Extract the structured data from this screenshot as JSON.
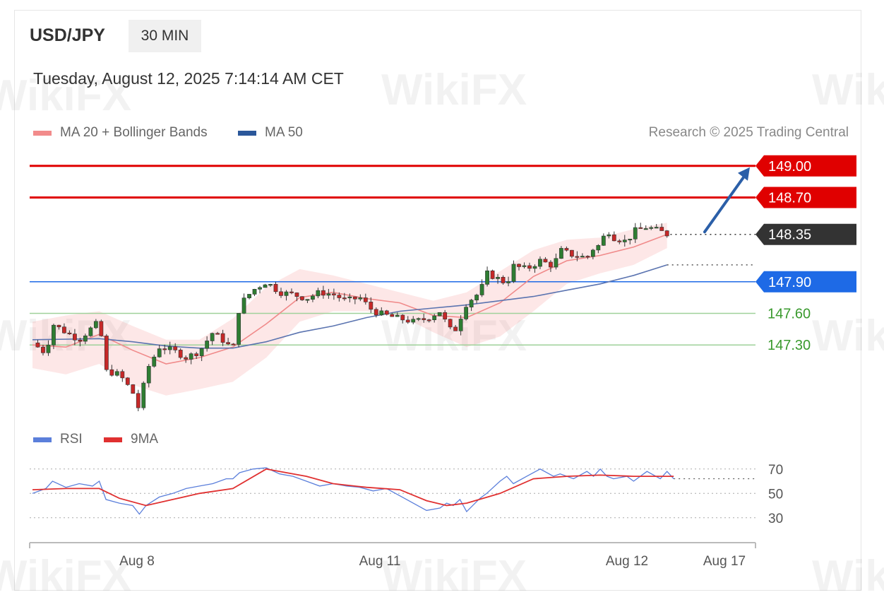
{
  "header": {
    "symbol": "USD/JPY",
    "timeframe": "30 MIN",
    "datetime": "Tuesday, August 12, 2025 7:14:14 AM CET"
  },
  "legend": {
    "main": [
      {
        "label": "MA 20 + Bollinger Bands",
        "color": "#f28b8b"
      },
      {
        "label": "MA 50",
        "color": "#2b579a"
      }
    ],
    "rsi": [
      {
        "label": "RSI",
        "color": "#5b7fdb"
      },
      {
        "label": "9MA",
        "color": "#e03030"
      }
    ]
  },
  "credit": "Research © 2025 Trading Central",
  "watermark": "WikiFX",
  "chart_data": [
    {
      "type": "candlestick",
      "title": "USD/JPY",
      "x_ticks": [
        "Aug 8",
        "Aug 11",
        "Aug 12",
        "Aug 17"
      ],
      "ylim": [
        146.55,
        149.2
      ],
      "grid": false,
      "legend_placement": "top-left",
      "levels": [
        {
          "label": "149.00",
          "value": 149.0,
          "color": "#e00000",
          "kind": "resistance",
          "tag": "red"
        },
        {
          "label": "148.70",
          "value": 148.7,
          "color": "#e00000",
          "kind": "resistance",
          "tag": "red"
        },
        {
          "label": "148.35",
          "value": 148.35,
          "color": "#333333",
          "kind": "last",
          "tag": "dark"
        },
        {
          "label": "147.90",
          "value": 147.9,
          "color": "#1e6ae6",
          "kind": "pivot",
          "tag": "blue"
        },
        {
          "label": "147.60",
          "value": 147.6,
          "color": "#3a9a2e",
          "kind": "support",
          "tag": "text"
        },
        {
          "label": "147.30",
          "value": 147.3,
          "color": "#3a9a2e",
          "kind": "support",
          "tag": "text"
        }
      ],
      "close_path": [
        [
          0,
          147.32
        ],
        [
          0.02,
          147.22
        ],
        [
          0.03,
          147.5
        ],
        [
          0.05,
          147.42
        ],
        [
          0.07,
          147.35
        ],
        [
          0.09,
          147.47
        ],
        [
          0.1,
          147.52
        ],
        [
          0.11,
          147.05
        ],
        [
          0.13,
          147.02
        ],
        [
          0.15,
          146.85
        ],
        [
          0.16,
          146.68
        ],
        [
          0.17,
          147.05
        ],
        [
          0.19,
          147.28
        ],
        [
          0.21,
          147.25
        ],
        [
          0.23,
          147.18
        ],
        [
          0.25,
          147.24
        ],
        [
          0.27,
          147.42
        ],
        [
          0.29,
          147.32
        ],
        [
          0.3,
          147.25
        ],
        [
          0.31,
          147.68
        ],
        [
          0.33,
          147.82
        ],
        [
          0.35,
          147.9
        ],
        [
          0.37,
          147.8
        ],
        [
          0.39,
          147.78
        ],
        [
          0.41,
          147.74
        ],
        [
          0.43,
          147.8
        ],
        [
          0.45,
          147.78
        ],
        [
          0.47,
          147.72
        ],
        [
          0.49,
          147.75
        ],
        [
          0.51,
          147.62
        ],
        [
          0.53,
          147.58
        ],
        [
          0.55,
          147.55
        ],
        [
          0.57,
          147.52
        ],
        [
          0.59,
          147.55
        ],
        [
          0.61,
          147.62
        ],
        [
          0.62,
          147.5
        ],
        [
          0.63,
          147.4
        ],
        [
          0.64,
          147.55
        ],
        [
          0.65,
          147.7
        ],
        [
          0.67,
          147.8
        ],
        [
          0.68,
          147.98
        ],
        [
          0.7,
          147.92
        ],
        [
          0.71,
          147.88
        ],
        [
          0.72,
          148.05
        ],
        [
          0.74,
          148.02
        ],
        [
          0.76,
          148.1
        ],
        [
          0.78,
          148.05
        ],
        [
          0.79,
          148.2
        ],
        [
          0.81,
          148.15
        ],
        [
          0.83,
          148.13
        ],
        [
          0.84,
          148.22
        ],
        [
          0.85,
          148.25
        ],
        [
          0.86,
          148.4
        ],
        [
          0.87,
          148.32
        ],
        [
          0.89,
          148.28
        ],
        [
          0.9,
          148.38
        ],
        [
          0.92,
          148.42
        ],
        [
          0.94,
          148.38
        ],
        [
          0.95,
          148.35
        ]
      ],
      "ma20": [
        [
          0,
          147.3
        ],
        [
          0.05,
          147.28
        ],
        [
          0.1,
          147.4
        ],
        [
          0.15,
          147.25
        ],
        [
          0.2,
          147.12
        ],
        [
          0.25,
          147.18
        ],
        [
          0.3,
          147.28
        ],
        [
          0.35,
          147.5
        ],
        [
          0.4,
          147.75
        ],
        [
          0.45,
          147.8
        ],
        [
          0.5,
          147.74
        ],
        [
          0.55,
          147.7
        ],
        [
          0.6,
          147.58
        ],
        [
          0.65,
          147.56
        ],
        [
          0.7,
          147.7
        ],
        [
          0.75,
          147.95
        ],
        [
          0.8,
          148.1
        ],
        [
          0.85,
          148.15
        ],
        [
          0.9,
          148.23
        ],
        [
          0.95,
          148.35
        ]
      ],
      "bb_upper": [
        [
          0,
          147.52
        ],
        [
          0.05,
          147.58
        ],
        [
          0.1,
          147.62
        ],
        [
          0.15,
          147.48
        ],
        [
          0.2,
          147.35
        ],
        [
          0.25,
          147.35
        ],
        [
          0.3,
          147.55
        ],
        [
          0.35,
          147.85
        ],
        [
          0.4,
          148.02
        ],
        [
          0.45,
          147.96
        ],
        [
          0.5,
          147.88
        ],
        [
          0.55,
          147.8
        ],
        [
          0.6,
          147.72
        ],
        [
          0.65,
          147.8
        ],
        [
          0.7,
          148.0
        ],
        [
          0.75,
          148.2
        ],
        [
          0.8,
          148.3
        ],
        [
          0.85,
          148.32
        ],
        [
          0.9,
          148.4
        ],
        [
          0.95,
          148.46
        ]
      ],
      "bb_lower": [
        [
          0,
          147.08
        ],
        [
          0.05,
          147.02
        ],
        [
          0.1,
          147.12
        ],
        [
          0.15,
          146.92
        ],
        [
          0.2,
          146.82
        ],
        [
          0.25,
          146.88
        ],
        [
          0.3,
          146.95
        ],
        [
          0.35,
          147.18
        ],
        [
          0.4,
          147.52
        ],
        [
          0.45,
          147.62
        ],
        [
          0.5,
          147.62
        ],
        [
          0.55,
          147.58
        ],
        [
          0.6,
          147.42
        ],
        [
          0.65,
          147.28
        ],
        [
          0.7,
          147.38
        ],
        [
          0.75,
          147.62
        ],
        [
          0.8,
          147.88
        ],
        [
          0.85,
          147.98
        ],
        [
          0.9,
          148.06
        ],
        [
          0.95,
          148.22
        ]
      ],
      "ma50": [
        [
          0,
          147.35
        ],
        [
          0.1,
          147.36
        ],
        [
          0.15,
          147.33
        ],
        [
          0.2,
          147.29
        ],
        [
          0.25,
          147.27
        ],
        [
          0.3,
          147.27
        ],
        [
          0.35,
          147.33
        ],
        [
          0.4,
          147.42
        ],
        [
          0.45,
          147.48
        ],
        [
          0.5,
          147.56
        ],
        [
          0.55,
          147.62
        ],
        [
          0.6,
          147.65
        ],
        [
          0.65,
          147.68
        ],
        [
          0.7,
          147.72
        ],
        [
          0.75,
          147.76
        ],
        [
          0.8,
          147.82
        ],
        [
          0.85,
          147.88
        ],
        [
          0.9,
          147.96
        ],
        [
          0.95,
          148.06
        ]
      ],
      "projection": {
        "from": [
          0.955,
          148.36
        ],
        "to": [
          1.0,
          149.0
        ]
      }
    },
    {
      "type": "line",
      "title": "RSI",
      "y_ticks": [
        70,
        50,
        30
      ],
      "ylim": [
        20,
        78
      ],
      "legend_placement": "top-left",
      "series": [
        {
          "name": "RSI",
          "color": "#5b7fdb",
          "values": [
            [
              0,
              50
            ],
            [
              0.02,
              54
            ],
            [
              0.03,
              60
            ],
            [
              0.05,
              55
            ],
            [
              0.07,
              58
            ],
            [
              0.09,
              56
            ],
            [
              0.1,
              60
            ],
            [
              0.11,
              45
            ],
            [
              0.13,
              42
            ],
            [
              0.15,
              40
            ],
            [
              0.16,
              33
            ],
            [
              0.17,
              40
            ],
            [
              0.19,
              47
            ],
            [
              0.21,
              50
            ],
            [
              0.23,
              54
            ],
            [
              0.25,
              56
            ],
            [
              0.27,
              58
            ],
            [
              0.29,
              62
            ],
            [
              0.3,
              62
            ],
            [
              0.31,
              67
            ],
            [
              0.33,
              70
            ],
            [
              0.35,
              71
            ],
            [
              0.37,
              66
            ],
            [
              0.39,
              64
            ],
            [
              0.41,
              60
            ],
            [
              0.43,
              56
            ],
            [
              0.45,
              58
            ],
            [
              0.47,
              56
            ],
            [
              0.49,
              55
            ],
            [
              0.51,
              52
            ],
            [
              0.53,
              54
            ],
            [
              0.55,
              48
            ],
            [
              0.57,
              42
            ],
            [
              0.59,
              36
            ],
            [
              0.61,
              38
            ],
            [
              0.62,
              42
            ],
            [
              0.63,
              40
            ],
            [
              0.64,
              45
            ],
            [
              0.65,
              35
            ],
            [
              0.67,
              46
            ],
            [
              0.68,
              50
            ],
            [
              0.7,
              60
            ],
            [
              0.71,
              64
            ],
            [
              0.72,
              58
            ],
            [
              0.74,
              64
            ],
            [
              0.76,
              70
            ],
            [
              0.78,
              64
            ],
            [
              0.79,
              66
            ],
            [
              0.81,
              62
            ],
            [
              0.83,
              68
            ],
            [
              0.84,
              64
            ],
            [
              0.85,
              70
            ],
            [
              0.86,
              64
            ],
            [
              0.87,
              62
            ],
            [
              0.89,
              64
            ],
            [
              0.9,
              60
            ],
            [
              0.92,
              68
            ],
            [
              0.94,
              62
            ],
            [
              0.95,
              68
            ],
            [
              0.96,
              62
            ]
          ]
        },
        {
          "name": "9MA",
          "color": "#e03030",
          "values": [
            [
              0,
              53
            ],
            [
              0.05,
              54
            ],
            [
              0.1,
              54
            ],
            [
              0.13,
              46
            ],
            [
              0.17,
              40
            ],
            [
              0.21,
              45
            ],
            [
              0.25,
              50
            ],
            [
              0.3,
              54
            ],
            [
              0.35,
              70
            ],
            [
              0.37,
              68
            ],
            [
              0.41,
              64
            ],
            [
              0.45,
              58
            ],
            [
              0.5,
              55
            ],
            [
              0.55,
              53
            ],
            [
              0.59,
              44
            ],
            [
              0.62,
              40
            ],
            [
              0.65,
              42
            ],
            [
              0.7,
              50
            ],
            [
              0.75,
              62
            ],
            [
              0.8,
              64
            ],
            [
              0.85,
              65
            ],
            [
              0.9,
              64
            ],
            [
              0.95,
              64
            ],
            [
              0.96,
              64
            ]
          ]
        }
      ]
    }
  ]
}
